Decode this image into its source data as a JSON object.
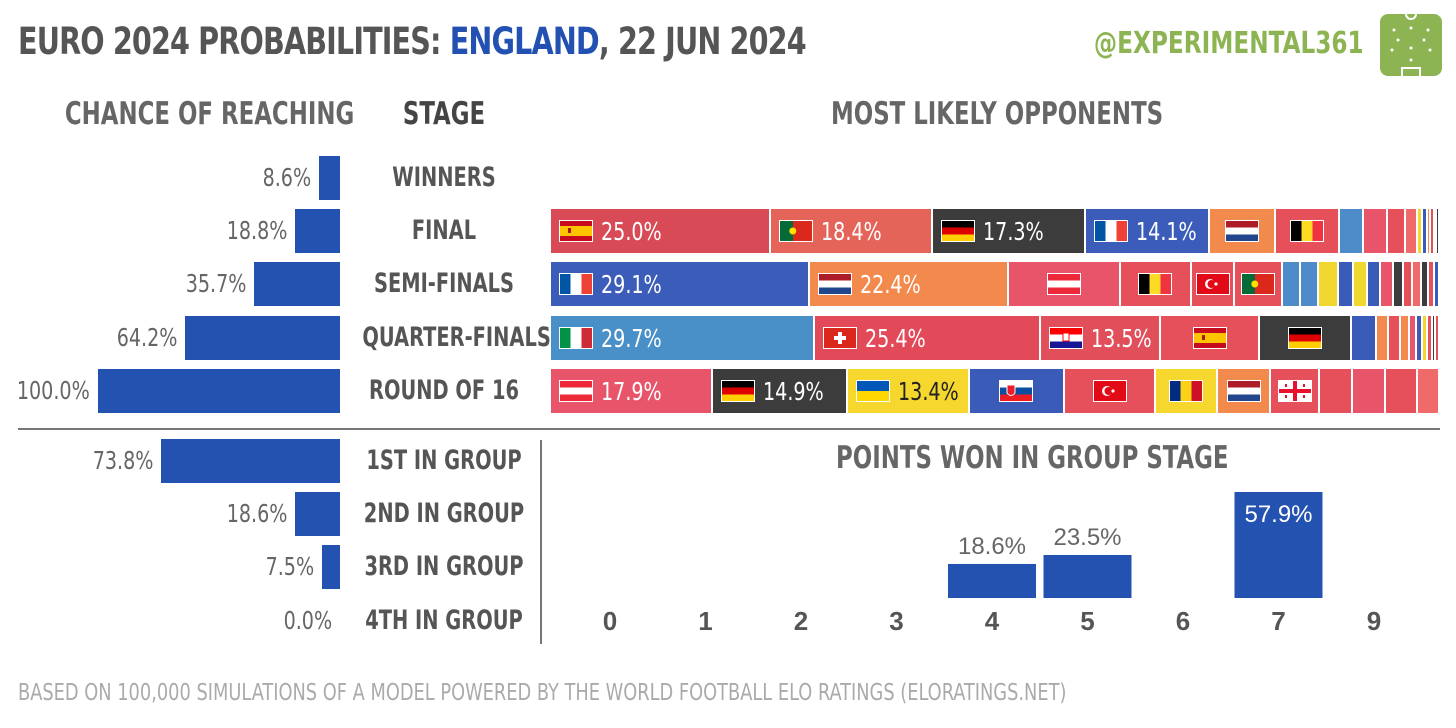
{
  "title": {
    "prefix": "EURO 2024 PROBABILITIES: ",
    "team": "ENGLAND",
    "suffix": ", 22 JUN 2024"
  },
  "handle": "@EXPERIMENTAL361",
  "colors": {
    "bar": "#2452b0",
    "handle": "#8db452",
    "title_team": "#2251b1"
  },
  "headers": {
    "chance": "CHANCE OF REACHING",
    "stage": "STAGE",
    "opponents": "MOST LIKELY OPPONENTS",
    "points": "POINTS WON IN GROUP STAGE"
  },
  "footer": "BASED ON 100,000 SIMULATIONS OF A MODEL POWERED BY THE WORLD FOOTBALL ELO RATINGS  (ELORATINGS.NET)",
  "chart_data": [
    {
      "type": "bar",
      "orientation": "horizontal",
      "categories": [
        "WINNERS",
        "FINAL",
        "SEMI-FINALS",
        "QUARTER-FINALS",
        "ROUND OF 16"
      ],
      "values": [
        8.6,
        18.8,
        35.7,
        64.2,
        100.0
      ],
      "labels": [
        "8.6%",
        "18.8%",
        "35.7%",
        "64.2%",
        "100.0%"
      ],
      "xlim": [
        0,
        100
      ]
    },
    {
      "type": "bar",
      "orientation": "horizontal",
      "categories": [
        "1ST IN GROUP",
        "2ND IN GROUP",
        "3RD IN GROUP",
        "4TH IN GROUP"
      ],
      "values": [
        73.8,
        18.6,
        7.5,
        0.0
      ],
      "labels": [
        "73.8%",
        "18.6%",
        "7.5%",
        "0.0%"
      ],
      "xlim": [
        0,
        100
      ]
    },
    {
      "type": "bar",
      "stacked": true,
      "categories": [
        "FINAL",
        "SEMI-FINALS",
        "QUARTER-FINALS",
        "ROUND OF 16"
      ],
      "rows": [
        {
          "stage": "FINAL",
          "segments": [
            {
              "flag": "spain",
              "value": 25.0,
              "label": "25.0%",
              "color": "#d84a55"
            },
            {
              "flag": "portugal",
              "value": 18.4,
              "label": "18.4%",
              "color": "#e4645a"
            },
            {
              "flag": "germany",
              "value": 17.3,
              "label": "17.3%",
              "color": "#3c3c3c"
            },
            {
              "flag": "france",
              "value": 14.1,
              "label": "14.1%",
              "color": "#3b5cb8"
            },
            {
              "flag": "netherlands",
              "value": 7.5,
              "color": "#f28a4e"
            },
            {
              "flag": "belgium",
              "value": 7.2,
              "color": "#e5505a"
            },
            {
              "value": 2.8,
              "color": "#4d8cc8"
            },
            {
              "value": 2.7,
              "color": "#e8546a"
            },
            {
              "value": 2.0,
              "color": "#e5505a"
            },
            {
              "value": 1.4,
              "color": "#f06a6a"
            },
            {
              "value": 0.6,
              "color": "#f0d830"
            },
            {
              "value": 0.5,
              "color": "#3a5cb8"
            },
            {
              "value": 0.4,
              "color": "#f28a4e"
            },
            {
              "value": 0.4,
              "color": "#e5505a"
            },
            {
              "value": 0.3,
              "color": "#e8546a"
            },
            {
              "value": 0.3,
              "color": "#3c3c3c"
            }
          ]
        },
        {
          "stage": "SEMI-FINALS",
          "segments": [
            {
              "flag": "france",
              "value": 29.1,
              "label": "29.1%",
              "color": "#3b5cb8"
            },
            {
              "flag": "netherlands",
              "value": 22.4,
              "label": "22.4%",
              "color": "#f28a4e"
            },
            {
              "flag": "austria",
              "value": 12.6,
              "color": "#e8546a"
            },
            {
              "flag": "belgium",
              "value": 8.0,
              "color": "#e5505a"
            },
            {
              "flag": "turkey",
              "value": 4.9,
              "color": "#e5505a"
            },
            {
              "flag": "portugal",
              "value": 5.4,
              "color": "#e5505a"
            },
            {
              "value": 2.0,
              "color": "#4d8cc8"
            },
            {
              "value": 2.0,
              "color": "#4d8cc8"
            },
            {
              "value": 2.2,
              "color": "#f0d830"
            },
            {
              "value": 1.7,
              "color": "#3a5cb8"
            },
            {
              "value": 1.6,
              "color": "#f0d830"
            },
            {
              "value": 1.5,
              "color": "#3a5cb8"
            },
            {
              "value": 1.4,
              "color": "#e8546a"
            },
            {
              "value": 1.2,
              "color": "#3c3c3c"
            },
            {
              "value": 1.0,
              "color": "#e5505a"
            },
            {
              "value": 1.0,
              "color": "#f06a6a"
            },
            {
              "value": 0.8,
              "color": "#3c3c3c"
            },
            {
              "value": 0.7,
              "color": "#e5505a"
            },
            {
              "value": 0.5,
              "color": "#3a5cb8"
            }
          ]
        },
        {
          "stage": "QUARTER-FINALS",
          "segments": [
            {
              "flag": "italy",
              "value": 29.7,
              "label": "29.7%",
              "color": "#4a90c8"
            },
            {
              "flag": "switzerland",
              "value": 25.4,
              "label": "25.4%",
              "color": "#e24a5a"
            },
            {
              "flag": "croatia",
              "value": 13.5,
              "label": "13.5%",
              "color": "#e04f5a"
            },
            {
              "flag": "spain",
              "value": 11.1,
              "color": "#e5505a"
            },
            {
              "flag": "germany",
              "value": 10.3,
              "color": "#3c3c3c"
            },
            {
              "value": 2.8,
              "color": "#3a5cb8"
            },
            {
              "value": 1.4,
              "color": "#f28a4e"
            },
            {
              "value": 1.3,
              "color": "#e5505a"
            },
            {
              "value": 1.0,
              "color": "#f28a4e"
            },
            {
              "value": 0.8,
              "color": "#e8546a"
            },
            {
              "value": 0.7,
              "color": "#3a5cb8"
            },
            {
              "value": 0.6,
              "color": "#f0d830"
            },
            {
              "value": 0.5,
              "color": "#e5505a"
            },
            {
              "value": 0.4,
              "color": "#3c3c3c"
            },
            {
              "value": 0.4,
              "color": "#e5505a"
            }
          ]
        },
        {
          "stage": "ROUND OF 16",
          "segments": [
            {
              "flag": "austria",
              "value": 17.9,
              "label": "17.9%",
              "color": "#e8546a"
            },
            {
              "flag": "germany",
              "value": 14.9,
              "label": "14.9%",
              "color": "#3c3c3c"
            },
            {
              "flag": "ukraine",
              "value": 13.4,
              "label": "13.4%",
              "color": "#f5d72e",
              "dark_text": true
            },
            {
              "flag": "slovakia",
              "value": 10.5,
              "color": "#3a5cb8"
            },
            {
              "flag": "turkey",
              "value": 10.1,
              "color": "#e5505a"
            },
            {
              "flag": "romania",
              "value": 6.8,
              "color": "#f5d72e"
            },
            {
              "flag": "netherlands",
              "value": 5.9,
              "color": "#f28a4e"
            },
            {
              "flag": "georgia",
              "value": 5.4,
              "color": "#e5505a"
            },
            {
              "value": 3.6,
              "color": "#e5505a"
            },
            {
              "value": 3.6,
              "color": "#e8546a"
            },
            {
              "value": 3.6,
              "color": "#e5505a"
            },
            {
              "value": 2.4,
              "color": "#f06a6a"
            }
          ]
        }
      ]
    },
    {
      "type": "bar",
      "title": "POINTS WON IN GROUP STAGE",
      "categories": [
        "0",
        "1",
        "2",
        "3",
        "4",
        "5",
        "6",
        "7",
        "9"
      ],
      "values": [
        0,
        0,
        0,
        0,
        18.6,
        23.5,
        0,
        57.9,
        0
      ],
      "labels": [
        "",
        "",
        "",
        "",
        "18.6%",
        "23.5%",
        "",
        "57.9%",
        ""
      ],
      "ylim": [
        0,
        57.9
      ]
    }
  ]
}
